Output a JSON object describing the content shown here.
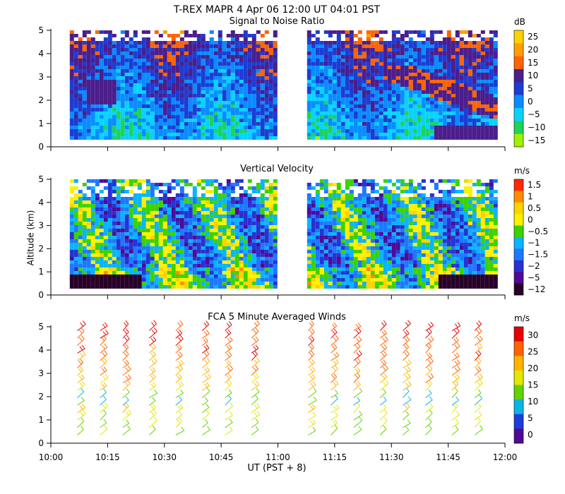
{
  "header": {
    "title": "T-REX  MAPR  4 Apr 06  12:00 UT  04:01  PST"
  },
  "x_axis": {
    "label": "UT  (PST + 8)",
    "ticks": [
      "10:00",
      "10:15",
      "10:30",
      "10:45",
      "11:00",
      "11:15",
      "11:30",
      "11:45",
      "12:00"
    ]
  },
  "y_axis_label": "Altitude (km)",
  "panels": [
    {
      "title": "Signal to Noise Ratio",
      "unit": "dB",
      "cbar": [
        "25",
        "20",
        "15",
        "10",
        "5",
        "0",
        "−5",
        "−10",
        "−15"
      ],
      "colors": [
        "#ffd200",
        "#ffa000",
        "#ff6400",
        "#4b1e8c",
        "#1e3cd2",
        "#0a8cff",
        "#0ad2ff",
        "#1ed25a",
        "#a0f000"
      ]
    },
    {
      "title": "Vertical Velocity",
      "unit": "m/s",
      "cbar": [
        "1.5",
        "1",
        "0.5",
        "0",
        "−0.5",
        "−1",
        "−1.5",
        "−2",
        "−5",
        "−12"
      ],
      "colors": [
        "#ff2800",
        "#ff8c00",
        "#ffd200",
        "#fff000",
        "#3cd200",
        "#0ab4ff",
        "#1e78ff",
        "#2832d2",
        "#500a96",
        "#280028"
      ]
    },
    {
      "title": "FCA 5 Minute Averaged Winds",
      "unit": "m/s",
      "cbar": [
        "30",
        "25",
        "20",
        "15",
        "10",
        "5",
        "0"
      ],
      "colors": [
        "#e60000",
        "#ff6400",
        "#ffb400",
        "#e6e600",
        "#64d200",
        "#0ab4e6",
        "#1e3cdc",
        "#500a96"
      ]
    }
  ],
  "chart_data": [
    {
      "type": "heatmap",
      "title": "Signal to Noise Ratio",
      "xlabel": "UT  (PST + 8)",
      "ylabel": "",
      "xlim": [
        "10:00",
        "12:00"
      ],
      "ylim": [
        0,
        5
      ],
      "yticks": [
        0,
        1,
        2,
        3,
        4,
        5
      ],
      "colorbar_label": "dB",
      "colorbar_ticks": [
        25,
        20,
        15,
        10,
        5,
        0,
        -5,
        -10,
        -15
      ],
      "data_gap": [
        "10:59",
        "11:07"
      ]
    },
    {
      "type": "heatmap",
      "title": "Vertical Velocity",
      "xlabel": "UT  (PST + 8)",
      "ylabel": "Altitude (km)",
      "xlim": [
        "10:00",
        "12:00"
      ],
      "ylim": [
        0,
        5
      ],
      "yticks": [
        0,
        1,
        2,
        3,
        4,
        5
      ],
      "colorbar_label": "m/s",
      "colorbar_ticks": [
        1.5,
        1,
        0.5,
        0,
        -0.5,
        -1,
        -1.5,
        -2,
        -5,
        -12
      ],
      "data_gap": [
        "10:59",
        "11:07"
      ]
    },
    {
      "type": "scatter",
      "title": "FCA 5 Minute Averaged Winds",
      "xlabel": "UT  (PST + 8)",
      "ylabel": "",
      "xlim": [
        "10:00",
        "12:00"
      ],
      "ylim": [
        0,
        5
      ],
      "yticks": [
        0,
        1,
        2,
        3,
        4,
        5
      ],
      "colorbar_label": "m/s",
      "colorbar_ticks": [
        30,
        25,
        20,
        15,
        10,
        5,
        0
      ],
      "times": [
        "10:07",
        "10:13",
        "10:19",
        "10:26",
        "10:33",
        "10:40",
        "10:46",
        "10:53",
        "11:08",
        "11:14",
        "11:20",
        "11:27",
        "11:33",
        "11:39",
        "11:46",
        "11:52"
      ]
    }
  ]
}
